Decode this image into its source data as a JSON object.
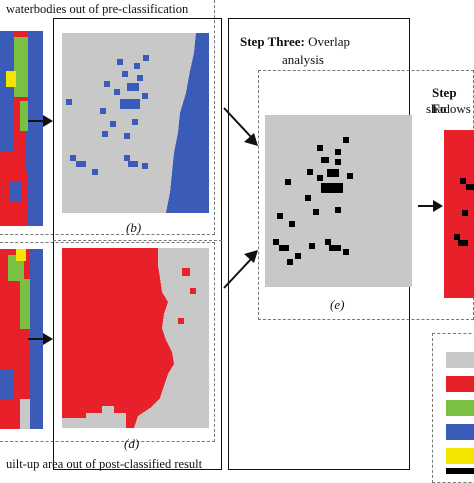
{
  "captions": {
    "top": "waterbodies out of pre-classification",
    "bottom": "uilt-up area out of post-classified result"
  },
  "step_three": {
    "bold": "Step Three:",
    "rest": " Overlap",
    "line2": "analysis"
  },
  "step_four": {
    "bold": "Step Fo",
    "line2": "shadows"
  },
  "panel_labels": {
    "b": "(b)",
    "d": "(d)",
    "e": "(e)"
  },
  "colors": {
    "blue": "#3a5bb8",
    "gray": "#c8c8c8",
    "red": "#e8202a",
    "green": "#7ac143",
    "yellow": "#f2e600",
    "black": "#000000"
  },
  "legend_colors": [
    "#c8c8c8",
    "#e8202a",
    "#7ac143",
    "#3a5bb8",
    "#f2e600",
    "#000000"
  ]
}
